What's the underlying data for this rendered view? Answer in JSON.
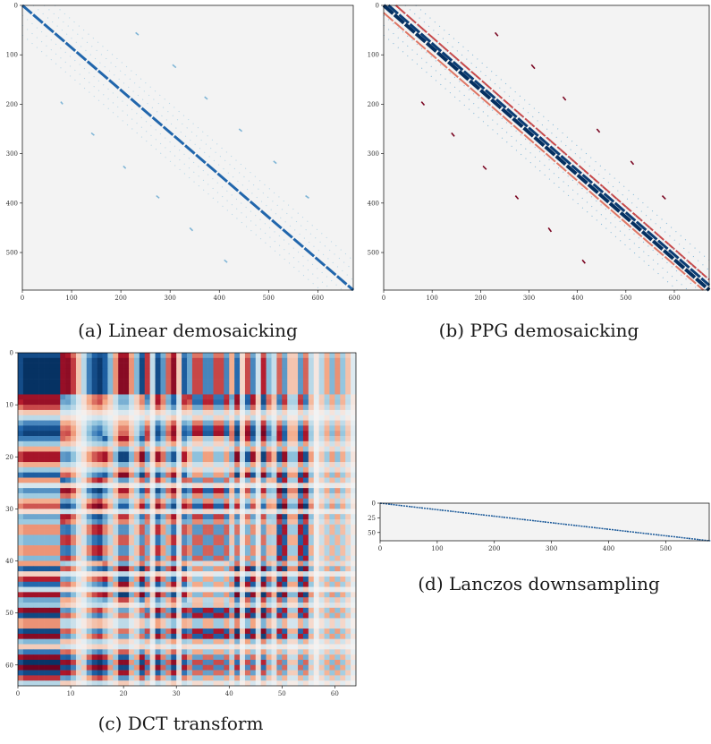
{
  "colors": {
    "background": "#f3f3f3",
    "positive_strong": "#08306b",
    "positive": "#2166ac",
    "positive_light": "#92c5de",
    "negative_strong": "#67001f",
    "negative": "#b2182b",
    "negative_light": "#f4a582",
    "frame": "#000000"
  },
  "chart_data": [
    {
      "id": "a",
      "type": "heatmap",
      "caption": "(a) Linear demosaicking",
      "colormap": "RdBu",
      "xlim": [
        0,
        672
      ],
      "ylim": [
        0,
        576
      ],
      "y_inverted": true,
      "xticks": [
        0,
        100,
        200,
        300,
        400,
        500,
        600
      ],
      "yticks": [
        0,
        100,
        200,
        300,
        400,
        500
      ],
      "pattern": "banded-diagonal",
      "bands": [
        {
          "from": [
            0,
            0
          ],
          "to": [
            672,
            576
          ],
          "value": 0.6,
          "width": 3
        }
      ],
      "offdiag_segments": [
        [
          230,
          55,
          236,
          60
        ],
        [
          305,
          120,
          312,
          126
        ],
        [
          370,
          185,
          376,
          190
        ],
        [
          440,
          250,
          446,
          255
        ],
        [
          510,
          315,
          516,
          320
        ],
        [
          575,
          385,
          582,
          390
        ],
        [
          78,
          195,
          82,
          200
        ],
        [
          140,
          258,
          146,
          263
        ],
        [
          205,
          325,
          210,
          330
        ],
        [
          272,
          385,
          278,
          390
        ],
        [
          340,
          450,
          346,
          456
        ],
        [
          410,
          515,
          416,
          520
        ]
      ],
      "offdiag_value": 0.35,
      "grid": false
    },
    {
      "id": "b",
      "type": "heatmap",
      "caption": "(b) PPG demosaicking",
      "colormap": "RdBu",
      "xlim": [
        0,
        672
      ],
      "ylim": [
        0,
        576
      ],
      "y_inverted": true,
      "xticks": [
        0,
        100,
        200,
        300,
        400,
        500,
        600
      ],
      "yticks": [
        0,
        100,
        200,
        300,
        400,
        500
      ],
      "pattern": "banded-diagonal",
      "bands": [
        {
          "from": [
            0,
            0
          ],
          "to": [
            672,
            576
          ],
          "value": 1.0,
          "width": 4
        },
        {
          "from": [
            10,
            0
          ],
          "to": [
            672,
            566
          ],
          "value": 0.9,
          "width": 3
        },
        {
          "from": [
            25,
            0
          ],
          "to": [
            672,
            555
          ],
          "value": -0.5,
          "width": 2
        },
        {
          "from": [
            0,
            15
          ],
          "to": [
            660,
            576
          ],
          "value": -0.4,
          "width": 2
        }
      ],
      "offdiag_segments": [
        [
          230,
          55,
          236,
          62
        ],
        [
          305,
          120,
          312,
          128
        ],
        [
          370,
          185,
          376,
          192
        ],
        [
          440,
          250,
          446,
          257
        ],
        [
          510,
          315,
          516,
          322
        ],
        [
          575,
          385,
          582,
          392
        ],
        [
          78,
          195,
          84,
          202
        ],
        [
          140,
          258,
          146,
          265
        ],
        [
          205,
          325,
          212,
          332
        ],
        [
          272,
          385,
          278,
          392
        ],
        [
          340,
          450,
          346,
          458
        ],
        [
          410,
          515,
          416,
          522
        ]
      ],
      "offdiag_value": -0.9,
      "grid": false
    },
    {
      "id": "c",
      "type": "heatmap",
      "caption": "(c) DCT transform",
      "colormap": "RdBu",
      "xlim": [
        0,
        64
      ],
      "ylim": [
        0,
        64
      ],
      "y_inverted": true,
      "xticks": [
        0,
        10,
        20,
        30,
        40,
        50,
        60
      ],
      "yticks": [
        0,
        10,
        20,
        30,
        40,
        50,
        60
      ],
      "pattern": "dct-8x8",
      "grid": false
    },
    {
      "id": "d",
      "type": "heatmap",
      "caption": "(d) Lanczos downsampling",
      "colormap": "RdBu",
      "xlim": [
        0,
        576
      ],
      "ylim": [
        0,
        64
      ],
      "y_inverted": true,
      "xticks": [
        0,
        100,
        200,
        300,
        400,
        500
      ],
      "yticks": [
        0,
        25,
        50
      ],
      "pattern": "staircase",
      "bands": [
        {
          "from": [
            0,
            0
          ],
          "to": [
            576,
            64
          ],
          "value": 0.7,
          "width": 1.5
        }
      ],
      "grid": false
    }
  ]
}
